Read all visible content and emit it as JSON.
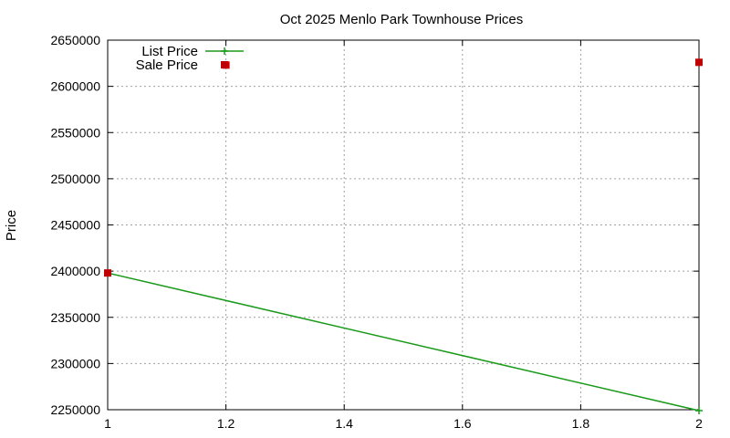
{
  "chart_data": {
    "type": "line",
    "title": "Oct 2025 Menlo Park Townhouse Prices",
    "xlabel": "",
    "ylabel": "Price",
    "xlim": [
      1,
      2
    ],
    "ylim": [
      2250000,
      2650000
    ],
    "x_ticks": [
      "1",
      "1.2",
      "1.4",
      "1.6",
      "1.8",
      "2"
    ],
    "y_ticks": [
      "2250000",
      "2300000",
      "2350000",
      "2400000",
      "2450000",
      "2500000",
      "2550000",
      "2600000",
      "2650000"
    ],
    "grid": true,
    "legend_position": "top-left",
    "series": [
      {
        "name": "List Price",
        "style": "line-points",
        "color": "#1a9a1a",
        "points": [
          {
            "x": 1,
            "y": 2398000
          },
          {
            "x": 2,
            "y": 2249000
          }
        ]
      },
      {
        "name": "Sale Price",
        "style": "points",
        "color": "#c00000",
        "points": [
          {
            "x": 1,
            "y": 2398000
          },
          {
            "x": 1.2,
            "y": 2623000
          },
          {
            "x": 2,
            "y": 2626000
          }
        ]
      }
    ]
  }
}
